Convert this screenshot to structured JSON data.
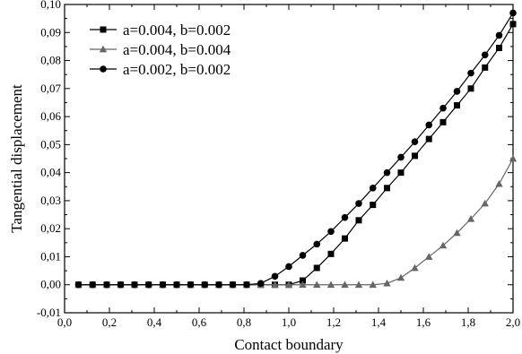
{
  "chart_data": {
    "type": "line",
    "title": "",
    "xlabel": "Contact boundary",
    "ylabel": "Tangential displacement",
    "xlim": [
      0.0,
      2.0
    ],
    "ylim": [
      -0.01,
      0.1
    ],
    "xticks": [
      "0,0",
      "0,2",
      "0,4",
      "0,6",
      "0,8",
      "1,0",
      "1,2",
      "1,4",
      "1,6",
      "1,8",
      "2,0"
    ],
    "yticks": [
      "-0,01",
      "0,00",
      "0,01",
      "0,02",
      "0,03",
      "0,04",
      "0,05",
      "0,06",
      "0,07",
      "0,08",
      "0,09",
      "0,10"
    ],
    "grid": false,
    "legend_position": "top-left",
    "x": [
      0.062,
      0.125,
      0.188,
      0.25,
      0.312,
      0.375,
      0.438,
      0.5,
      0.562,
      0.625,
      0.688,
      0.75,
      0.812,
      0.875,
      0.938,
      1.0,
      1.062,
      1.125,
      1.188,
      1.25,
      1.312,
      1.375,
      1.438,
      1.5,
      1.562,
      1.625,
      1.688,
      1.75,
      1.812,
      1.875,
      1.938,
      2.0
    ],
    "series": [
      {
        "name": "a=0.004, b=0.002",
        "marker": "square",
        "color": "#000000",
        "values": [
          0,
          0,
          0,
          0,
          0,
          0,
          0,
          0,
          0,
          0,
          0,
          0,
          0,
          0,
          0,
          0,
          0.0015,
          0.006,
          0.011,
          0.0165,
          0.023,
          0.0285,
          0.0345,
          0.04,
          0.046,
          0.052,
          0.058,
          0.064,
          0.07,
          0.0775,
          0.0845,
          0.093
        ]
      },
      {
        "name": "a=0.004, b=0.004",
        "marker": "triangle",
        "color": "#666666",
        "values": [
          0,
          0,
          0,
          0,
          0,
          0,
          0,
          0,
          0,
          0,
          0,
          0,
          0,
          0,
          0,
          0,
          0,
          0,
          0,
          0,
          0,
          0,
          0.0005,
          0.0025,
          0.006,
          0.01,
          0.014,
          0.0185,
          0.0235,
          0.029,
          0.036,
          0.045
        ]
      },
      {
        "name": "a=0.002, b=0.002",
        "marker": "circle",
        "color": "#000000",
        "values": [
          0,
          0,
          0,
          0,
          0,
          0,
          0,
          0,
          0,
          0,
          0,
          0,
          0,
          0.0005,
          0.003,
          0.0065,
          0.0105,
          0.0145,
          0.019,
          0.024,
          0.029,
          0.0345,
          0.04,
          0.0455,
          0.051,
          0.057,
          0.063,
          0.069,
          0.0755,
          0.082,
          0.089,
          0.097
        ]
      }
    ]
  }
}
